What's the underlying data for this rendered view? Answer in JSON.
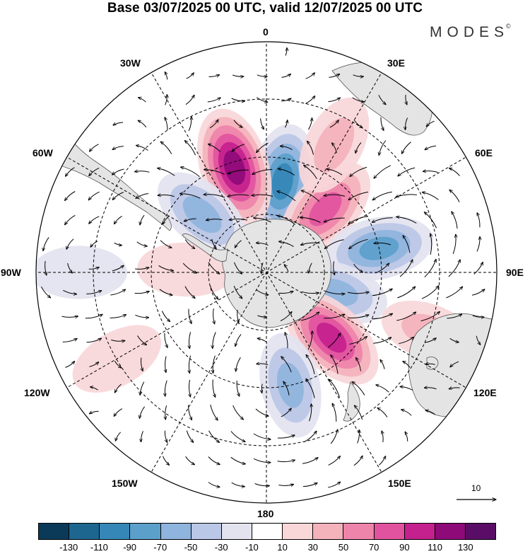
{
  "title": "Base 03/07/2025 00 UTC, valid 12/07/2025 00 UTC",
  "brand": {
    "text": "MODES",
    "mark": "©"
  },
  "longitude_labels": {
    "top": "0",
    "top_left": "30W",
    "top_right": "30E",
    "upper_left": "60W",
    "upper_right": "60E",
    "left": "90W",
    "right": "90E",
    "lower_left": "120W",
    "lower_right": "120E",
    "bottom_left": "150W",
    "bottom_right": "150E",
    "bottom": "180"
  },
  "reference_vector": "10",
  "colorbar": {
    "colors": [
      "#0b3a58",
      "#1d6690",
      "#3587b8",
      "#5b9fcb",
      "#8fb4dd",
      "#bbc7e6",
      "#e3e3f0",
      "#ffffff",
      "#f9d7d9",
      "#f4b2bb",
      "#ee84aa",
      "#e2539f",
      "#c4208e",
      "#8f0a79",
      "#5a0d66"
    ],
    "labels": [
      "-130",
      "-110",
      "-90",
      "-70",
      "-50",
      "-30",
      "-10",
      "10",
      "30",
      "50",
      "70",
      "90",
      "110",
      "130"
    ]
  },
  "anomaly_centers": [
    {
      "lon": 10,
      "lat": -58,
      "value": -100
    },
    {
      "lon": -17,
      "lat": -52,
      "value": 120
    },
    {
      "lon": 43,
      "lat": -60,
      "value": 90
    },
    {
      "lon": 28,
      "lat": -40,
      "value": 55
    },
    {
      "lon": -48,
      "lat": -60,
      "value": -70
    },
    {
      "lon": 78,
      "lat": -50,
      "value": -80
    },
    {
      "lon": 106,
      "lat": -65,
      "value": -65
    },
    {
      "lon": 135,
      "lat": -58,
      "value": 100
    },
    {
      "lon": 168,
      "lat": -50,
      "value": -65
    },
    {
      "lon": -88,
      "lat": -62,
      "value": 35
    },
    {
      "lon": -90,
      "lat": -25,
      "value": -30
    },
    {
      "lon": 110,
      "lat": -30,
      "value": 40
    },
    {
      "lon": -120,
      "lat": -30,
      "value": 35
    }
  ],
  "colors": {
    "land": "#e4e4e4",
    "ocean": "#ffffff",
    "outline": "#000000"
  }
}
